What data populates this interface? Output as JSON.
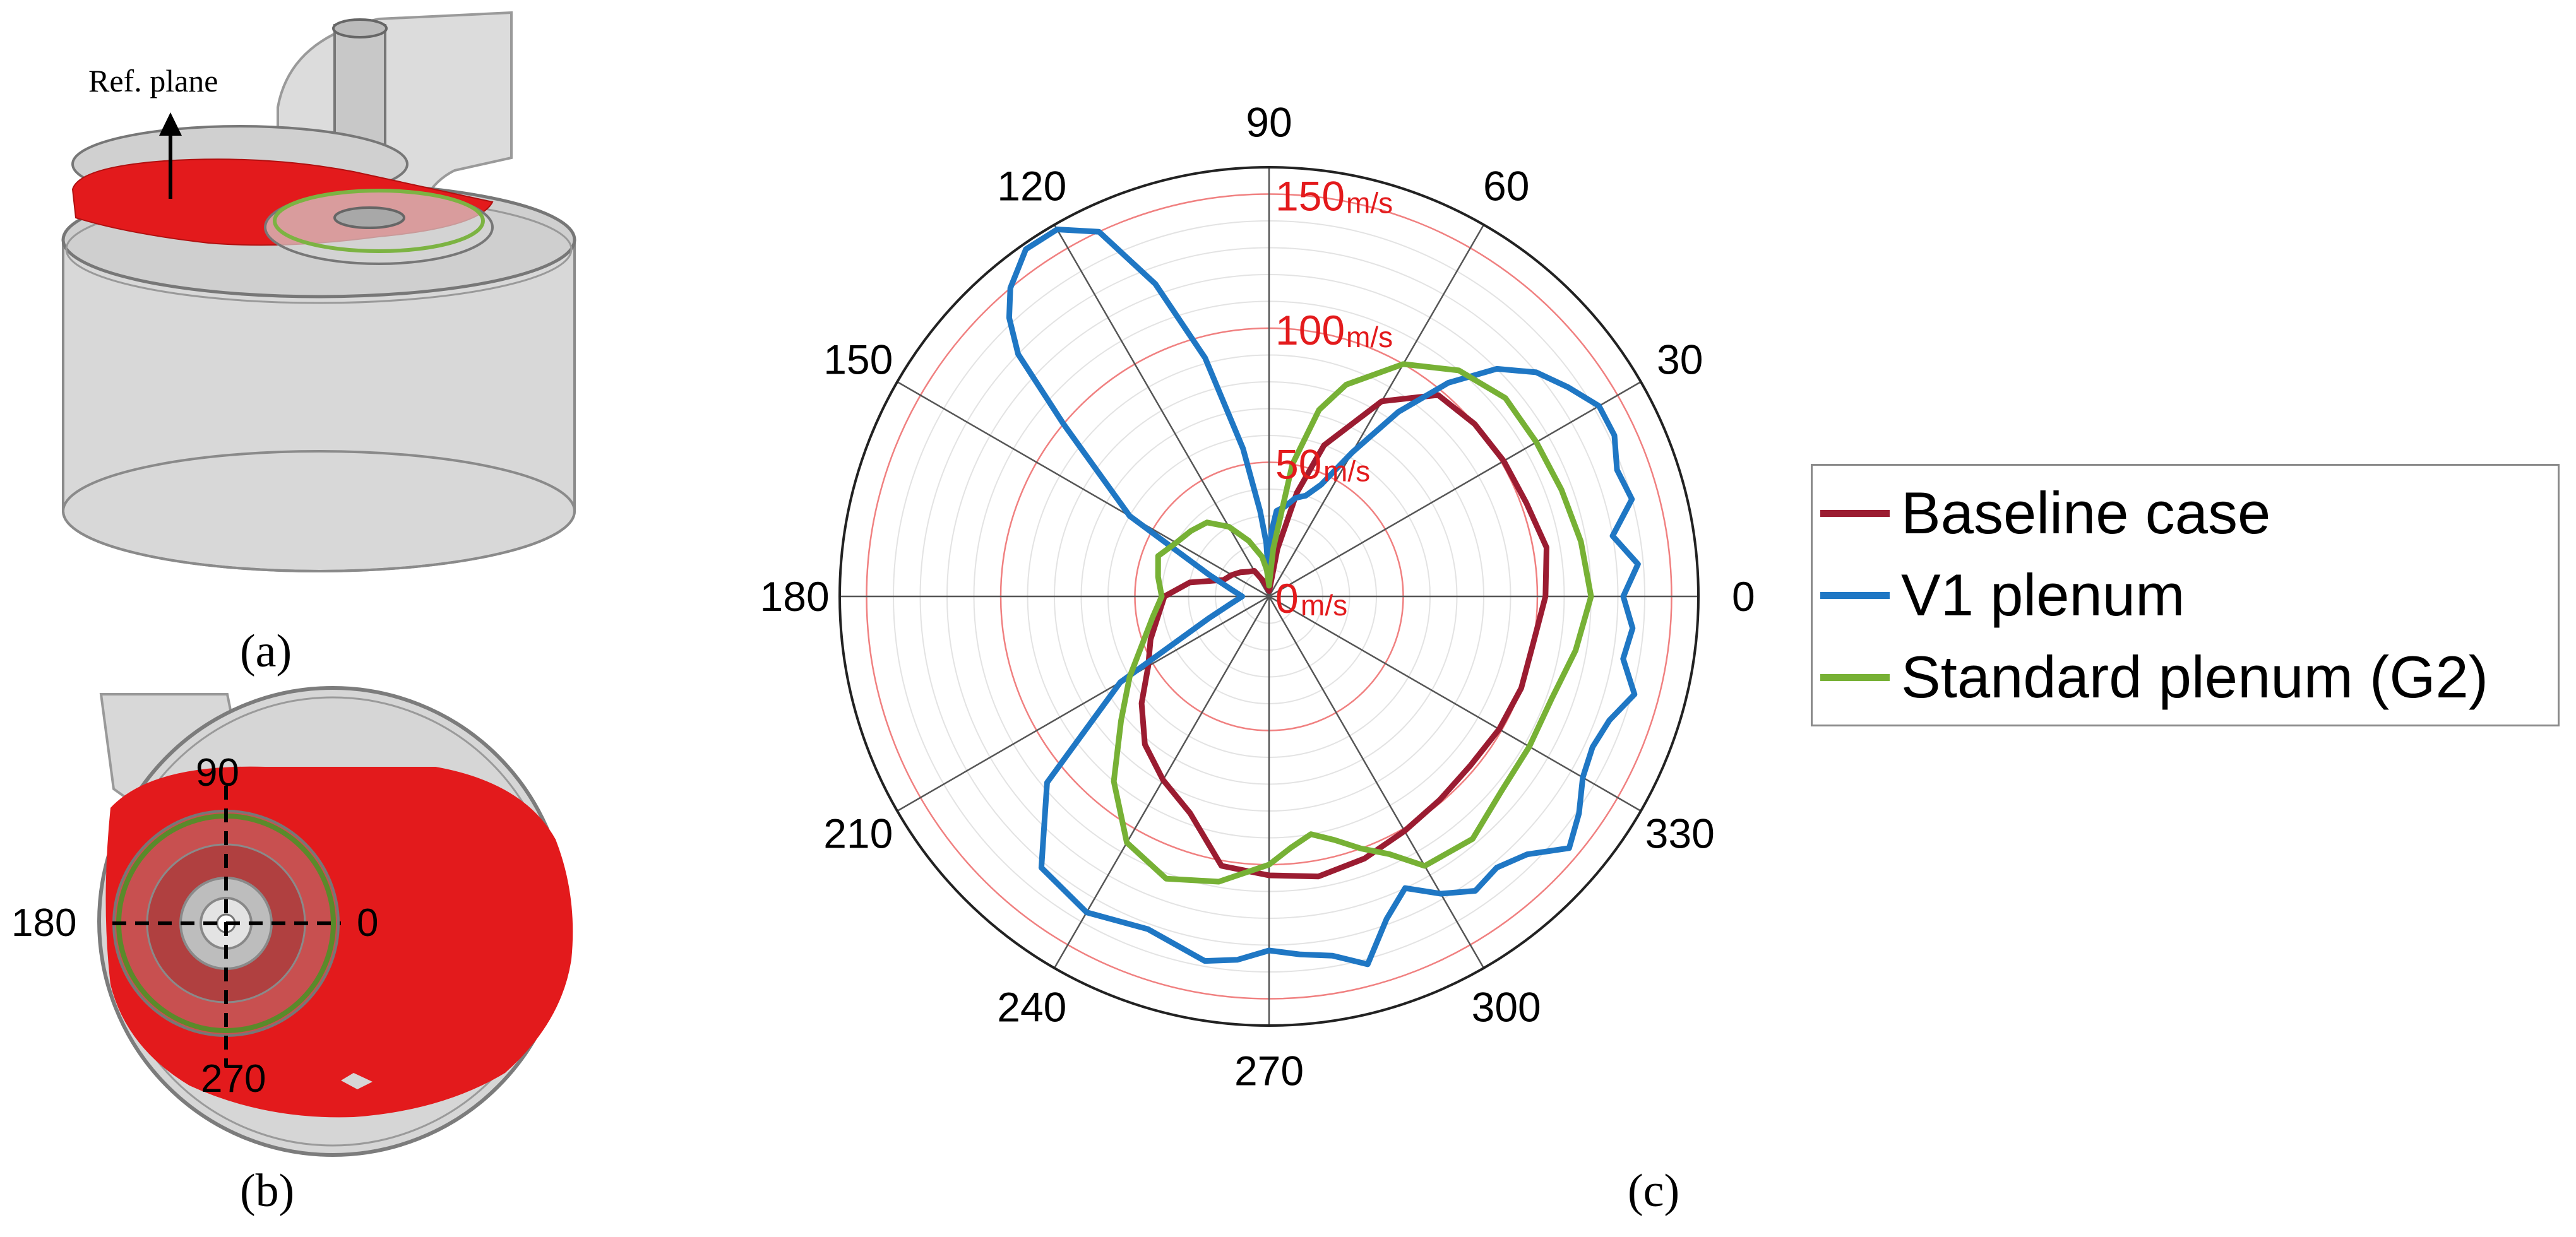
{
  "panels": {
    "a": "(a)",
    "b": "(b)",
    "c": "(c)"
  },
  "fig_a": {
    "annotation": "Ref. plane",
    "colors": {
      "plane": "#e31a1c",
      "ring": "#7cb342",
      "cylinder": "#d3d3d3"
    }
  },
  "fig_b": {
    "axis_labels": {
      "top": "90",
      "left": "180",
      "right": "0",
      "bottom": "270"
    }
  },
  "chart_data": {
    "type": "polar-line",
    "angle_labels": [
      "0",
      "30",
      "60",
      "90",
      "120",
      "150",
      "180",
      "210",
      "240",
      "270",
      "300",
      "330"
    ],
    "radial_labels": [
      {
        "value": 0,
        "label": "0",
        "unit": "m/s"
      },
      {
        "value": 50,
        "label": "50",
        "unit": "m/s"
      },
      {
        "value": 100,
        "label": "100",
        "unit": "m/s"
      },
      {
        "value": 150,
        "label": "150",
        "unit": "m/s"
      }
    ],
    "rlim": [
      0,
      160
    ],
    "radial_minor_step": 10,
    "legend_position": "right",
    "series": [
      {
        "name": "Baseline case",
        "color": "#9b1c31",
        "theta": [
          0,
          10,
          20,
          30,
          40,
          50,
          60,
          70,
          75,
          80,
          85,
          90,
          100,
          110,
          120,
          130,
          140,
          150,
          160,
          170,
          180,
          190,
          200,
          210,
          220,
          230,
          240,
          250,
          260,
          270,
          280,
          290,
          300,
          310,
          320,
          330,
          340,
          350,
          360
        ],
        "r": [
          103,
          105,
          102,
          101,
          100,
          98,
          84,
          60,
          40,
          18,
          3,
          2,
          3,
          6,
          11,
          12,
          14,
          16,
          18,
          30,
          39,
          42,
          47,
          52,
          62,
          72,
          79,
          86,
          102,
          104,
          106,
          104,
          101,
          99,
          98,
          99,
          100,
          100,
          103
        ]
      },
      {
        "name": "V1 plenum",
        "color": "#1f77c4",
        "theta": [
          0,
          5,
          10,
          15,
          20,
          25,
          30,
          35,
          40,
          45,
          50,
          55,
          60,
          65,
          70,
          75,
          80,
          85,
          88,
          90,
          93,
          96,
          100,
          105,
          110,
          115,
          120,
          125,
          130,
          133,
          136,
          140,
          150,
          160,
          170,
          180,
          190,
          200,
          210,
          220,
          230,
          240,
          250,
          260,
          265,
          270,
          275,
          280,
          285,
          290,
          295,
          300,
          305,
          310,
          315,
          320,
          325,
          330,
          335,
          340,
          345,
          350,
          355,
          360
        ],
        "r": [
          132,
          138,
          130,
          140,
          138,
          142,
          142,
          136,
          130,
          120,
          104,
          84,
          62,
          46,
          40,
          38,
          34,
          32,
          24,
          5,
          20,
          32,
          56,
          92,
          124,
          150,
          158,
          158,
          150,
          142,
          130,
          100,
          60,
          24,
          14,
          10,
          14,
          24,
          64,
          108,
          132,
          136,
          132,
          138,
          136,
          132,
          134,
          136,
          142,
          128,
          120,
          128,
          134,
          132,
          136,
          146,
          141,
          135,
          133,
          135,
          141,
          134,
          136,
          132
        ]
      },
      {
        "name": "Standard plenum (G2)",
        "color": "#77b135",
        "theta": [
          0,
          10,
          20,
          30,
          40,
          50,
          60,
          70,
          75,
          80,
          85,
          90,
          95,
          100,
          110,
          120,
          130,
          140,
          150,
          160,
          170,
          180,
          190,
          200,
          210,
          220,
          230,
          240,
          250,
          260,
          270,
          275,
          280,
          285,
          290,
          295,
          300,
          310,
          320,
          330,
          340,
          350,
          360
        ],
        "r": [
          120,
          118,
          116,
          115,
          115,
          110,
          100,
          84,
          72,
          50,
          18,
          4,
          10,
          15,
          22,
          30,
          36,
          38,
          40,
          44,
          42,
          40,
          44,
          50,
          60,
          72,
          90,
          106,
          112,
          108,
          100,
          94,
          90,
          94,
          100,
          106,
          116,
          118,
          113,
          112,
          112,
          116,
          120
        ]
      }
    ]
  }
}
